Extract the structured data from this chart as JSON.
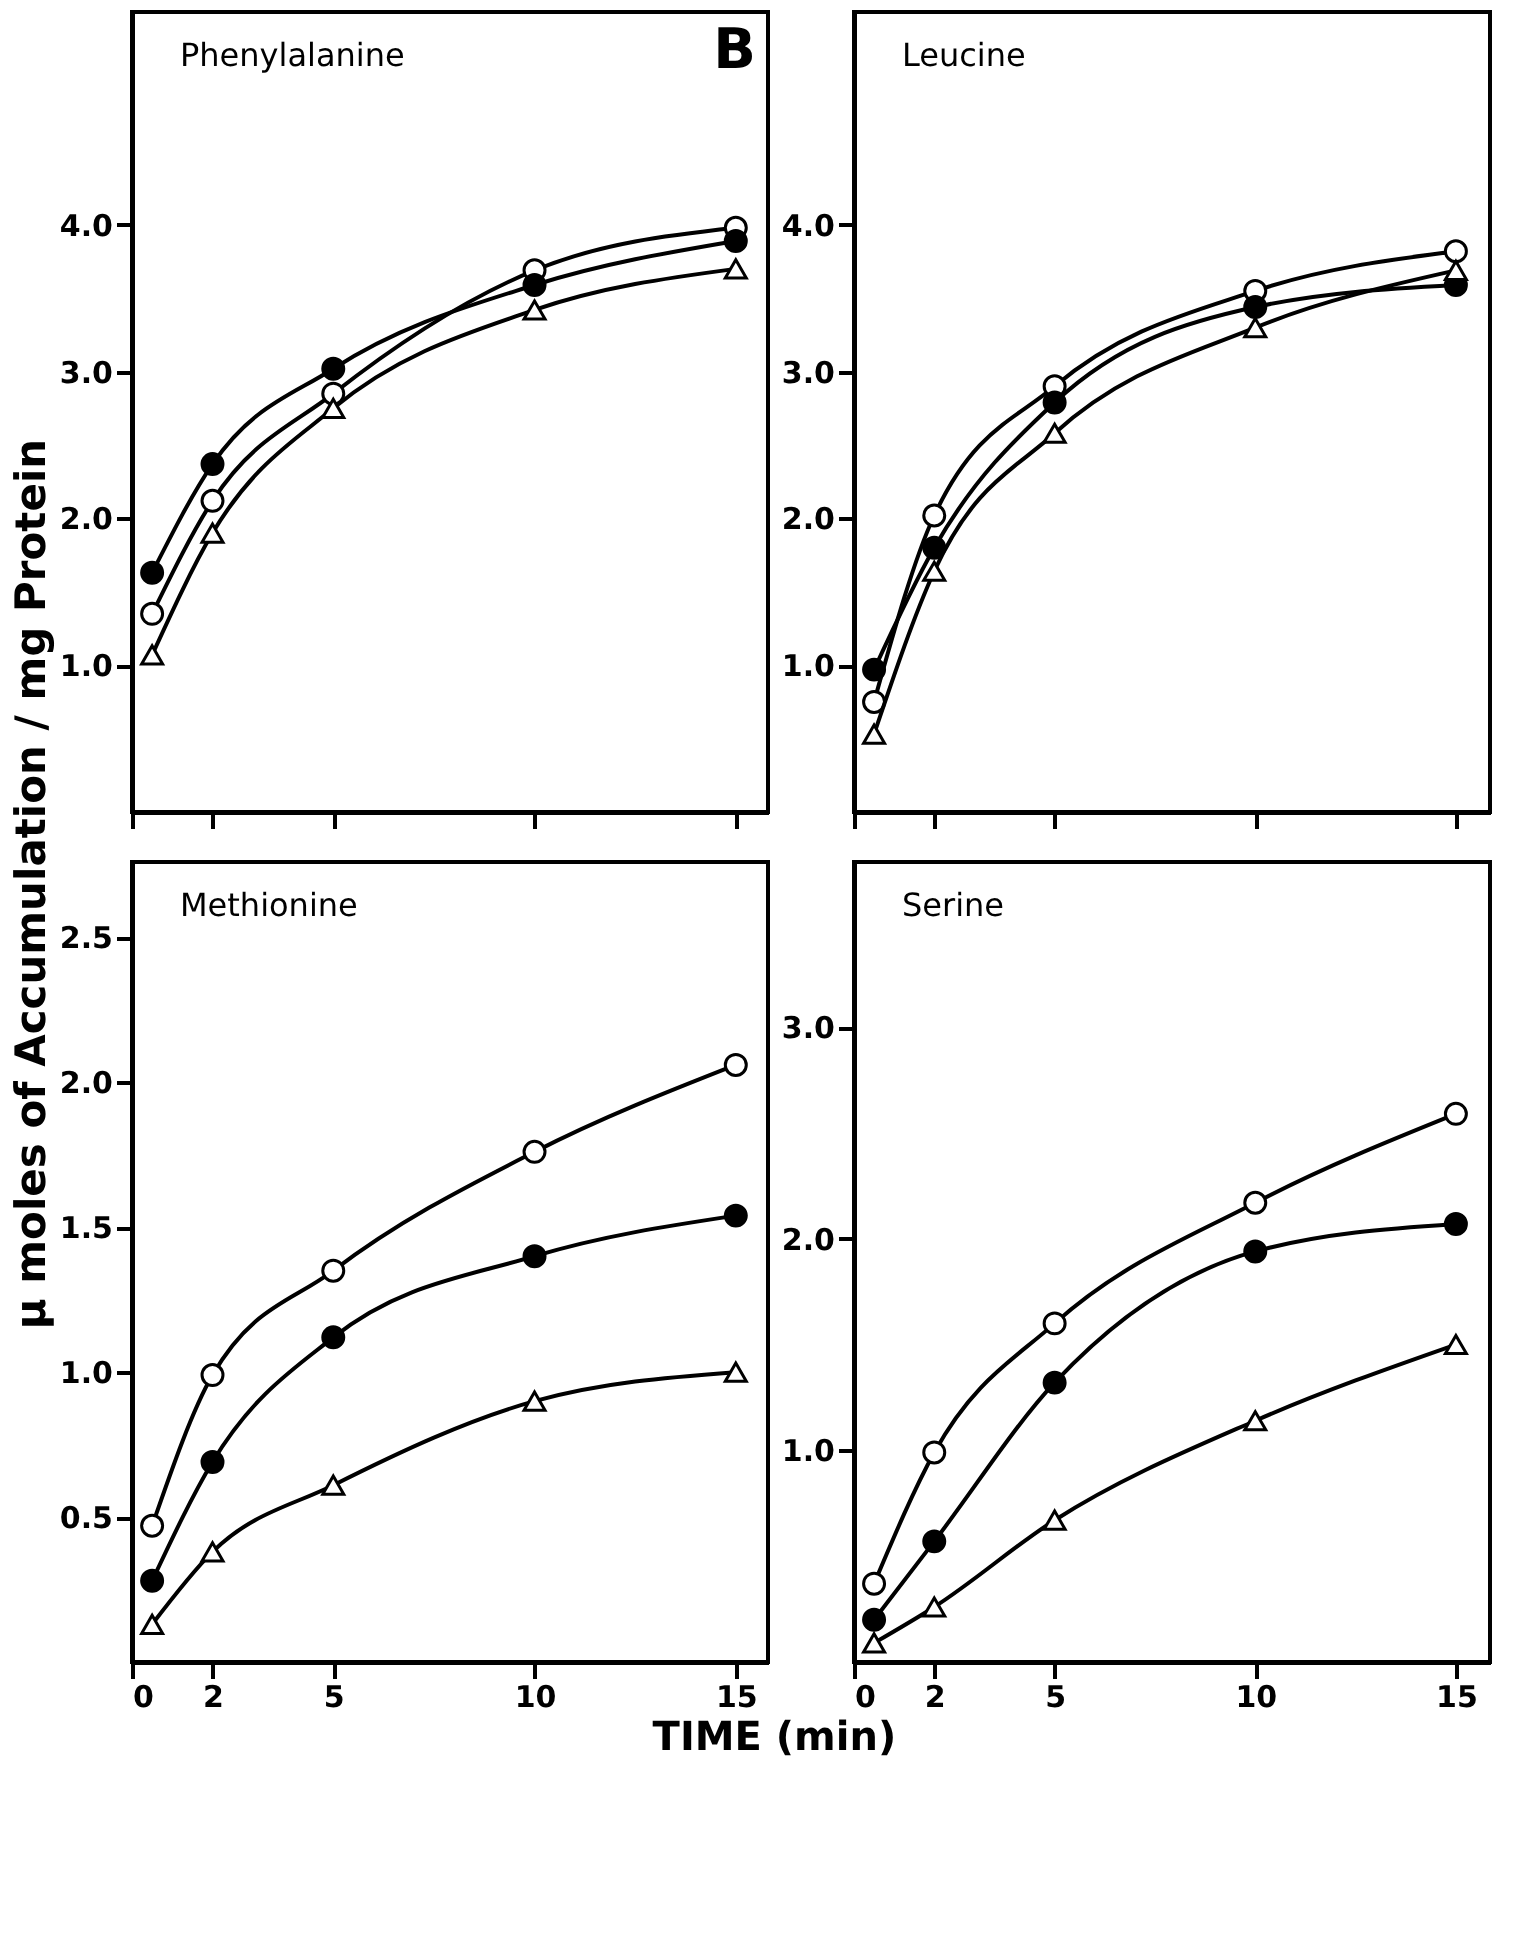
{
  "chart_data": [
    {
      "type": "line",
      "title": "Phenylalanine",
      "ylabel": "μ moles of Accumulation / mg Protein",
      "annotations": [
        "B"
      ],
      "x": [
        0.5,
        2,
        5,
        10,
        15
      ],
      "xlim": [
        0,
        15.8
      ],
      "xticks": [
        0,
        2,
        5,
        10,
        15
      ],
      "ylim": [
        0,
        5.45
      ],
      "yticks": [
        {
          "value": 1,
          "label": "1.0"
        },
        {
          "value": 2,
          "label": "2.0"
        },
        {
          "value": 3,
          "label": "3.0"
        },
        {
          "value": 4,
          "label": "4.0"
        }
      ],
      "tick_labels": "y",
      "grid": false,
      "legend": false,
      "line_style": "solid",
      "series": [
        {
          "color": "#ffffff",
          "marker": "circle",
          "values": [
            1.35,
            2.12,
            2.85,
            3.69,
            3.98
          ]
        },
        {
          "color": "#000000",
          "marker": "circle",
          "values": [
            1.63,
            2.37,
            3.02,
            3.59,
            3.89
          ]
        },
        {
          "color": "#fefefe",
          "marker": "triangle",
          "values": [
            1.07,
            1.9,
            2.75,
            3.42,
            3.7
          ]
        }
      ]
    },
    {
      "type": "line",
      "title": "Leucine",
      "x": [
        0.5,
        2,
        5,
        10,
        15
      ],
      "xlim": [
        0,
        15.85
      ],
      "xticks": [
        0,
        2,
        5,
        10,
        15
      ],
      "ylim": [
        0,
        5.45
      ],
      "yticks": [
        {
          "value": 1,
          "label": "1.0"
        },
        {
          "value": 2,
          "label": "2.0"
        },
        {
          "value": 3,
          "label": "3.0"
        },
        {
          "value": 4,
          "label": "4.0"
        }
      ],
      "tick_labels": "y",
      "grid": false,
      "legend": false,
      "line_style": "solid",
      "series": [
        {
          "color": "#ffffff",
          "marker": "circle",
          "values": [
            0.75,
            2.02,
            2.9,
            3.55,
            3.82
          ]
        },
        {
          "color": "#000000",
          "marker": "circle",
          "values": [
            0.97,
            1.8,
            2.79,
            3.44,
            3.59
          ]
        },
        {
          "color": "#fefefe",
          "marker": "triangle",
          "values": [
            0.53,
            1.64,
            2.58,
            3.3,
            3.69
          ]
        }
      ]
    },
    {
      "type": "line",
      "title": "Methionine",
      "xlabel": "TIME (min)",
      "x": [
        0.5,
        2,
        5,
        10,
        15
      ],
      "xlim": [
        0,
        15.8
      ],
      "xticks": [
        0,
        2,
        5,
        10,
        15
      ],
      "ylim": [
        0,
        2.76
      ],
      "yticks": [
        0.5,
        {
          "value": 1,
          "label": "1.0"
        },
        1.5,
        {
          "value": 2,
          "label": "2.0"
        },
        2.5
      ],
      "grid": false,
      "legend": false,
      "line_style": "solid",
      "series": [
        {
          "color": "#ffffff",
          "marker": "circle",
          "values": [
            0.47,
            0.99,
            1.35,
            1.76,
            2.06
          ]
        },
        {
          "color": "#000000",
          "marker": "circle",
          "values": [
            0.28,
            0.69,
            1.12,
            1.4,
            1.54
          ]
        },
        {
          "color": "#fefefe",
          "marker": "triangle",
          "values": [
            0.13,
            0.38,
            0.61,
            0.9,
            1.0
          ]
        }
      ]
    },
    {
      "type": "line",
      "title": "Serine",
      "x": [
        0.5,
        2,
        5,
        10,
        15
      ],
      "xlim": [
        0,
        15.85
      ],
      "xticks": [
        0,
        2,
        5,
        10,
        15
      ],
      "ylim": [
        0,
        3.78
      ],
      "yticks": [
        {
          "value": 1,
          "label": "1.0"
        },
        {
          "value": 2,
          "label": "2.0"
        },
        {
          "value": 3,
          "label": "3.0"
        }
      ],
      "grid": false,
      "legend": false,
      "line_style": "solid",
      "series": [
        {
          "color": "#ffffff",
          "marker": "circle",
          "values": [
            0.37,
            0.99,
            1.6,
            2.17,
            2.59
          ]
        },
        {
          "color": "#000000",
          "marker": "circle",
          "values": [
            0.2,
            0.57,
            1.32,
            1.94,
            2.07
          ]
        },
        {
          "color": "#fefefe",
          "marker": "triangle",
          "values": [
            0.09,
            0.26,
            0.67,
            1.14,
            1.5
          ]
        }
      ]
    }
  ]
}
